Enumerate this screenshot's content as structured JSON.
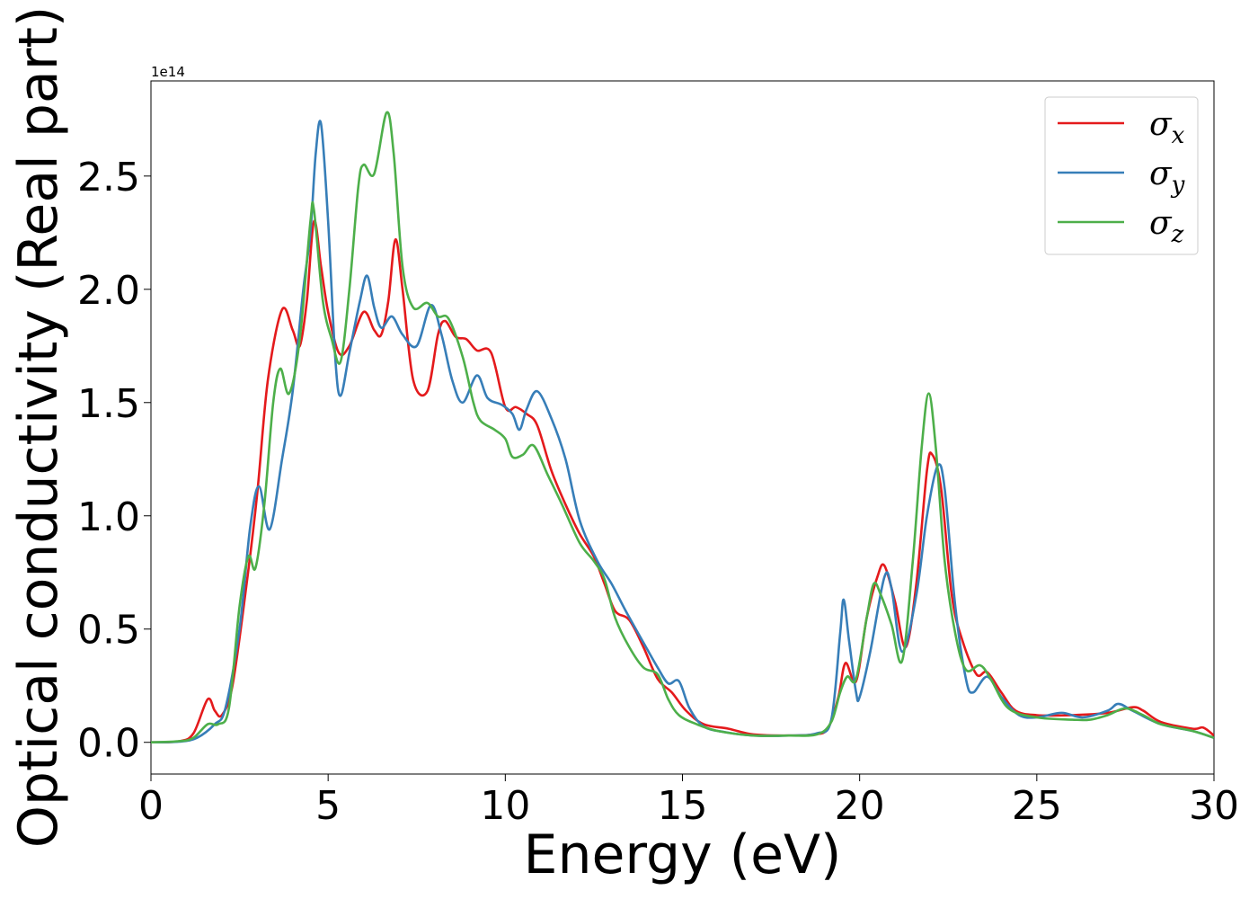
{
  "chart_data": {
    "type": "line",
    "xlabel": "Energy (eV)",
    "ylabel": "Optical conductivity (Real part)",
    "y_offset_label": "1e14",
    "xlim": [
      0,
      30
    ],
    "ylim": [
      -0.14,
      2.92
    ],
    "x_ticks": [
      0,
      5,
      10,
      15,
      20,
      25,
      30
    ],
    "x_tick_labels": [
      "0",
      "5",
      "10",
      "15",
      "20",
      "25",
      "30"
    ],
    "y_ticks": [
      0.0,
      0.5,
      1.0,
      1.5,
      2.0,
      2.5
    ],
    "y_tick_labels": [
      "0.0",
      "0.5",
      "1.0",
      "1.5",
      "2.0",
      "2.5"
    ],
    "grid": false,
    "legend_position": "top-right",
    "colors": {
      "sigma_x": "#e41a1c",
      "sigma_y": "#377eb8",
      "sigma_z": "#4daf4a"
    },
    "series": [
      {
        "name": "σx",
        "symbol": "σ",
        "subscript": "x",
        "color": "#e41a1c",
        "points": [
          [
            0,
            0
          ],
          [
            0.8,
            0.005
          ],
          [
            1.2,
            0.04
          ],
          [
            1.6,
            0.19
          ],
          [
            1.8,
            0.14
          ],
          [
            2.0,
            0.12
          ],
          [
            2.3,
            0.25
          ],
          [
            2.7,
            0.7
          ],
          [
            3.0,
            1.1
          ],
          [
            3.3,
            1.6
          ],
          [
            3.7,
            1.91
          ],
          [
            4.0,
            1.82
          ],
          [
            4.2,
            1.75
          ],
          [
            4.4,
            1.95
          ],
          [
            4.6,
            2.3
          ],
          [
            4.8,
            2.1
          ],
          [
            5.0,
            1.9
          ],
          [
            5.3,
            1.72
          ],
          [
            5.6,
            1.75
          ],
          [
            6.0,
            1.9
          ],
          [
            6.3,
            1.82
          ],
          [
            6.5,
            1.8
          ],
          [
            6.7,
            1.95
          ],
          [
            6.9,
            2.22
          ],
          [
            7.1,
            2.0
          ],
          [
            7.4,
            1.6
          ],
          [
            7.8,
            1.55
          ],
          [
            8.1,
            1.8
          ],
          [
            8.3,
            1.86
          ],
          [
            8.6,
            1.79
          ],
          [
            8.9,
            1.78
          ],
          [
            9.2,
            1.73
          ],
          [
            9.6,
            1.72
          ],
          [
            10.0,
            1.48
          ],
          [
            10.3,
            1.48
          ],
          [
            10.6,
            1.45
          ],
          [
            10.9,
            1.4
          ],
          [
            11.3,
            1.2
          ],
          [
            11.7,
            1.05
          ],
          [
            12.1,
            0.92
          ],
          [
            12.5,
            0.82
          ],
          [
            12.8,
            0.7
          ],
          [
            13.1,
            0.58
          ],
          [
            13.5,
            0.54
          ],
          [
            13.9,
            0.42
          ],
          [
            14.3,
            0.28
          ],
          [
            14.7,
            0.22
          ],
          [
            15.1,
            0.14
          ],
          [
            15.6,
            0.08
          ],
          [
            16.3,
            0.06
          ],
          [
            17.0,
            0.035
          ],
          [
            18.0,
            0.03
          ],
          [
            18.7,
            0.035
          ],
          [
            19.1,
            0.06
          ],
          [
            19.4,
            0.2
          ],
          [
            19.6,
            0.35
          ],
          [
            19.9,
            0.27
          ],
          [
            20.2,
            0.55
          ],
          [
            20.5,
            0.73
          ],
          [
            20.7,
            0.78
          ],
          [
            21.0,
            0.62
          ],
          [
            21.3,
            0.42
          ],
          [
            21.6,
            0.7
          ],
          [
            21.9,
            1.2
          ],
          [
            22.05,
            1.27
          ],
          [
            22.3,
            1.12
          ],
          [
            22.6,
            0.65
          ],
          [
            22.9,
            0.45
          ],
          [
            23.3,
            0.3
          ],
          [
            23.6,
            0.31
          ],
          [
            24.0,
            0.22
          ],
          [
            24.4,
            0.14
          ],
          [
            25.0,
            0.12
          ],
          [
            26.0,
            0.12
          ],
          [
            27.0,
            0.13
          ],
          [
            27.7,
            0.155
          ],
          [
            28.0,
            0.14
          ],
          [
            28.5,
            0.09
          ],
          [
            29.4,
            0.06
          ],
          [
            29.7,
            0.065
          ],
          [
            30.0,
            0.03
          ]
        ]
      },
      {
        "name": "σy",
        "symbol": "σ",
        "subscript": "y",
        "color": "#377eb8",
        "points": [
          [
            0,
            0
          ],
          [
            0.8,
            0.003
          ],
          [
            1.3,
            0.02
          ],
          [
            1.8,
            0.08
          ],
          [
            2.1,
            0.15
          ],
          [
            2.5,
            0.5
          ],
          [
            2.8,
            0.95
          ],
          [
            3.05,
            1.13
          ],
          [
            3.35,
            0.94
          ],
          [
            3.7,
            1.25
          ],
          [
            4.0,
            1.55
          ],
          [
            4.3,
            2.0
          ],
          [
            4.5,
            2.25
          ],
          [
            4.65,
            2.6
          ],
          [
            4.8,
            2.73
          ],
          [
            5.0,
            2.3
          ],
          [
            5.2,
            1.7
          ],
          [
            5.35,
            1.53
          ],
          [
            5.6,
            1.72
          ],
          [
            5.9,
            1.95
          ],
          [
            6.1,
            2.06
          ],
          [
            6.3,
            1.92
          ],
          [
            6.5,
            1.83
          ],
          [
            6.8,
            1.88
          ],
          [
            7.1,
            1.8
          ],
          [
            7.5,
            1.75
          ],
          [
            7.9,
            1.93
          ],
          [
            8.2,
            1.8
          ],
          [
            8.5,
            1.6
          ],
          [
            8.8,
            1.5
          ],
          [
            9.2,
            1.62
          ],
          [
            9.5,
            1.52
          ],
          [
            9.9,
            1.49
          ],
          [
            10.2,
            1.45
          ],
          [
            10.4,
            1.38
          ],
          [
            10.6,
            1.47
          ],
          [
            10.9,
            1.55
          ],
          [
            11.3,
            1.43
          ],
          [
            11.7,
            1.25
          ],
          [
            12.1,
            0.98
          ],
          [
            12.6,
            0.8
          ],
          [
            13.0,
            0.7
          ],
          [
            13.4,
            0.58
          ],
          [
            13.9,
            0.44
          ],
          [
            14.3,
            0.33
          ],
          [
            14.6,
            0.26
          ],
          [
            14.9,
            0.27
          ],
          [
            15.2,
            0.15
          ],
          [
            15.6,
            0.07
          ],
          [
            16.2,
            0.045
          ],
          [
            17.0,
            0.03
          ],
          [
            18.0,
            0.03
          ],
          [
            18.8,
            0.04
          ],
          [
            19.2,
            0.1
          ],
          [
            19.45,
            0.48
          ],
          [
            19.55,
            0.63
          ],
          [
            19.7,
            0.45
          ],
          [
            19.9,
            0.22
          ],
          [
            20.0,
            0.2
          ],
          [
            20.3,
            0.4
          ],
          [
            20.7,
            0.73
          ],
          [
            20.9,
            0.68
          ],
          [
            21.2,
            0.4
          ],
          [
            21.6,
            0.65
          ],
          [
            21.9,
            1.0
          ],
          [
            22.2,
            1.22
          ],
          [
            22.4,
            1.12
          ],
          [
            22.7,
            0.6
          ],
          [
            23.0,
            0.28
          ],
          [
            23.2,
            0.22
          ],
          [
            23.6,
            0.29
          ],
          [
            24.0,
            0.2
          ],
          [
            24.5,
            0.12
          ],
          [
            25.0,
            0.11
          ],
          [
            25.7,
            0.13
          ],
          [
            26.3,
            0.11
          ],
          [
            27.0,
            0.14
          ],
          [
            27.3,
            0.17
          ],
          [
            27.7,
            0.14
          ],
          [
            28.5,
            0.08
          ],
          [
            29.4,
            0.05
          ],
          [
            30.0,
            0.02
          ]
        ]
      },
      {
        "name": "σz",
        "symbol": "σ",
        "subscript": "z",
        "color": "#4daf4a",
        "points": [
          [
            0,
            0
          ],
          [
            0.8,
            0.005
          ],
          [
            1.2,
            0.02
          ],
          [
            1.6,
            0.08
          ],
          [
            1.9,
            0.08
          ],
          [
            2.2,
            0.15
          ],
          [
            2.5,
            0.6
          ],
          [
            2.75,
            0.82
          ],
          [
            2.95,
            0.77
          ],
          [
            3.2,
            1.05
          ],
          [
            3.45,
            1.5
          ],
          [
            3.65,
            1.65
          ],
          [
            3.9,
            1.54
          ],
          [
            4.2,
            1.78
          ],
          [
            4.5,
            2.3
          ],
          [
            4.6,
            2.35
          ],
          [
            4.85,
            1.95
          ],
          [
            5.1,
            1.78
          ],
          [
            5.35,
            1.68
          ],
          [
            5.6,
            2.0
          ],
          [
            5.85,
            2.45
          ],
          [
            6.0,
            2.55
          ],
          [
            6.3,
            2.51
          ],
          [
            6.65,
            2.78
          ],
          [
            6.85,
            2.6
          ],
          [
            7.1,
            2.1
          ],
          [
            7.4,
            1.92
          ],
          [
            7.8,
            1.94
          ],
          [
            8.1,
            1.88
          ],
          [
            8.4,
            1.87
          ],
          [
            8.8,
            1.7
          ],
          [
            9.1,
            1.5
          ],
          [
            9.3,
            1.42
          ],
          [
            9.7,
            1.38
          ],
          [
            10.0,
            1.34
          ],
          [
            10.2,
            1.26
          ],
          [
            10.5,
            1.27
          ],
          [
            10.8,
            1.31
          ],
          [
            11.2,
            1.18
          ],
          [
            11.6,
            1.05
          ],
          [
            12.1,
            0.88
          ],
          [
            12.5,
            0.8
          ],
          [
            12.8,
            0.72
          ],
          [
            13.1,
            0.55
          ],
          [
            13.5,
            0.42
          ],
          [
            13.9,
            0.33
          ],
          [
            14.3,
            0.3
          ],
          [
            14.6,
            0.19
          ],
          [
            14.9,
            0.12
          ],
          [
            15.4,
            0.08
          ],
          [
            16.0,
            0.05
          ],
          [
            17.0,
            0.03
          ],
          [
            18.0,
            0.03
          ],
          [
            18.8,
            0.035
          ],
          [
            19.2,
            0.09
          ],
          [
            19.45,
            0.22
          ],
          [
            19.65,
            0.29
          ],
          [
            19.9,
            0.28
          ],
          [
            20.2,
            0.55
          ],
          [
            20.4,
            0.7
          ],
          [
            20.6,
            0.65
          ],
          [
            20.9,
            0.52
          ],
          [
            21.2,
            0.36
          ],
          [
            21.5,
            0.8
          ],
          [
            21.75,
            1.3
          ],
          [
            21.95,
            1.54
          ],
          [
            22.15,
            1.3
          ],
          [
            22.4,
            0.8
          ],
          [
            22.7,
            0.48
          ],
          [
            23.0,
            0.32
          ],
          [
            23.4,
            0.34
          ],
          [
            23.7,
            0.28
          ],
          [
            24.2,
            0.15
          ],
          [
            25.0,
            0.11
          ],
          [
            26.0,
            0.1
          ],
          [
            26.5,
            0.1
          ],
          [
            27.0,
            0.12
          ],
          [
            27.5,
            0.15
          ],
          [
            28.0,
            0.12
          ],
          [
            28.5,
            0.08
          ],
          [
            29.4,
            0.05
          ],
          [
            30.0,
            0.02
          ]
        ]
      }
    ]
  }
}
